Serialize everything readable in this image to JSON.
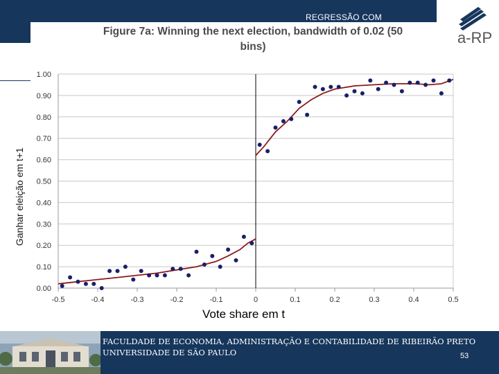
{
  "header": {
    "section_label": "REGRESSÃO COM"
  },
  "footer": {
    "line1": "FACULDADE DE ECONOMIA, ADMINISTRAÇÃO E CONTABILIDADE DE RIBEIRÃO PRETO",
    "line2": "UNIVERSIDADE DE SÃO PAULO",
    "page_number": "53"
  },
  "logo": {
    "text": "a-RP"
  },
  "colors": {
    "navy": "#16365c",
    "points": "#1a1f6b",
    "fit": "#8b1a1a",
    "grid": "#c8c8c8"
  },
  "chart_data": {
    "type": "scatter",
    "title_line1": "Figure 7a: Winning the next election, bandwidth of 0.02 (50",
    "title_line2": "bins)",
    "xlabel": "Vote share em t",
    "ylabel": "Ganhar eleição em t+1",
    "xlim": [
      -0.5,
      0.5
    ],
    "ylim": [
      0,
      1
    ],
    "xticks": [
      "-0.5",
      "-0.4",
      "-0.3",
      "-0.2",
      "-0.1",
      "0",
      "0.1",
      "0.2",
      "0.3",
      "0.4",
      "0.5"
    ],
    "yticks": [
      "0.00",
      "0.10",
      "0.20",
      "0.30",
      "0.40",
      "0.50",
      "0.60",
      "0.70",
      "0.80",
      "0.90",
      "1.00"
    ],
    "grid": "horizontal",
    "cutoff": 0,
    "points": [
      [
        -0.49,
        0.01
      ],
      [
        -0.47,
        0.05
      ],
      [
        -0.45,
        0.03
      ],
      [
        -0.43,
        0.02
      ],
      [
        -0.41,
        0.02
      ],
      [
        -0.39,
        0.0
      ],
      [
        -0.37,
        0.08
      ],
      [
        -0.35,
        0.08
      ],
      [
        -0.33,
        0.1
      ],
      [
        -0.31,
        0.04
      ],
      [
        -0.29,
        0.08
      ],
      [
        -0.27,
        0.06
      ],
      [
        -0.25,
        0.06
      ],
      [
        -0.23,
        0.06
      ],
      [
        -0.21,
        0.09
      ],
      [
        -0.19,
        0.09
      ],
      [
        -0.17,
        0.06
      ],
      [
        -0.15,
        0.17
      ],
      [
        -0.13,
        0.11
      ],
      [
        -0.11,
        0.15
      ],
      [
        -0.09,
        0.1
      ],
      [
        -0.07,
        0.18
      ],
      [
        -0.05,
        0.13
      ],
      [
        -0.03,
        0.24
      ],
      [
        -0.01,
        0.21
      ],
      [
        0.01,
        0.67
      ],
      [
        0.03,
        0.64
      ],
      [
        0.05,
        0.75
      ],
      [
        0.07,
        0.78
      ],
      [
        0.09,
        0.79
      ],
      [
        0.11,
        0.87
      ],
      [
        0.13,
        0.81
      ],
      [
        0.15,
        0.94
      ],
      [
        0.17,
        0.93
      ],
      [
        0.19,
        0.94
      ],
      [
        0.21,
        0.94
      ],
      [
        0.23,
        0.9
      ],
      [
        0.25,
        0.92
      ],
      [
        0.27,
        0.91
      ],
      [
        0.29,
        0.97
      ],
      [
        0.31,
        0.93
      ],
      [
        0.33,
        0.96
      ],
      [
        0.35,
        0.95
      ],
      [
        0.37,
        0.92
      ],
      [
        0.39,
        0.96
      ],
      [
        0.41,
        0.96
      ],
      [
        0.43,
        0.95
      ],
      [
        0.45,
        0.97
      ],
      [
        0.47,
        0.91
      ],
      [
        0.49,
        0.97
      ]
    ],
    "fit_left": [
      [
        -0.5,
        0.02
      ],
      [
        -0.45,
        0.03
      ],
      [
        -0.4,
        0.04
      ],
      [
        -0.35,
        0.05
      ],
      [
        -0.3,
        0.06
      ],
      [
        -0.25,
        0.07
      ],
      [
        -0.2,
        0.085
      ],
      [
        -0.15,
        0.1
      ],
      [
        -0.1,
        0.125
      ],
      [
        -0.07,
        0.15
      ],
      [
        -0.04,
        0.18
      ],
      [
        -0.02,
        0.21
      ],
      [
        0.0,
        0.23
      ]
    ],
    "fit_right": [
      [
        0.0,
        0.62
      ],
      [
        0.02,
        0.66
      ],
      [
        0.05,
        0.73
      ],
      [
        0.08,
        0.78
      ],
      [
        0.11,
        0.84
      ],
      [
        0.14,
        0.88
      ],
      [
        0.17,
        0.91
      ],
      [
        0.2,
        0.93
      ],
      [
        0.25,
        0.945
      ],
      [
        0.3,
        0.95
      ],
      [
        0.35,
        0.955
      ],
      [
        0.4,
        0.955
      ],
      [
        0.44,
        0.95
      ],
      [
        0.47,
        0.955
      ],
      [
        0.5,
        0.975
      ]
    ]
  }
}
